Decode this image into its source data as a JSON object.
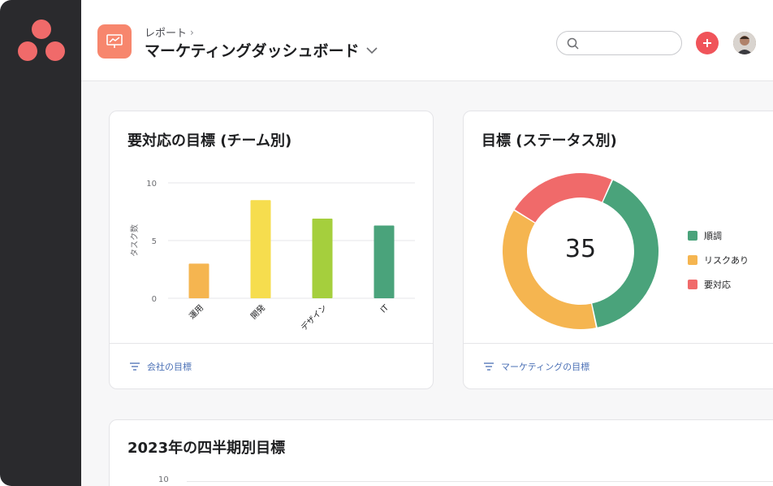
{
  "colors": {
    "sidebar": "#2a2a2d",
    "brand": "#f06a6a",
    "report_icon": "#f7866d",
    "add_button": "#f0545a"
  },
  "header": {
    "breadcrumb": "レポート",
    "breadcrumb_sep": "›",
    "title": "マーケティングダッシュボード",
    "search_placeholder": ""
  },
  "icons": {
    "logo": "asana-logo",
    "report": "presentation-chart-icon",
    "search": "search-icon",
    "add": "plus-icon",
    "dropdown": "chevron-down-icon",
    "filter": "filter-icon"
  },
  "card_team": {
    "title": "要対応の目標 (チーム別)",
    "footer": "会社の目標"
  },
  "card_status": {
    "title": "目標 (ステータス別)",
    "center_value": "35",
    "footer": "マーケティングの目標"
  },
  "card_quarter": {
    "title": "2023年の四半期別目標",
    "y_tick": "10"
  },
  "chart_data": [
    {
      "type": "bar",
      "title": "要対応の目標 (チーム別)",
      "xlabel": "",
      "ylabel": "タスク数",
      "categories": [
        "運用",
        "開発",
        "デザイン",
        "IT"
      ],
      "values": [
        3,
        8.5,
        6.9,
        6.3
      ],
      "colors": [
        "#f5b550",
        "#f6dd4e",
        "#a5cf3d",
        "#4aa37b"
      ],
      "ylim": [
        0,
        10
      ],
      "yticks": [
        0,
        5,
        10
      ],
      "grid": true
    },
    {
      "type": "pie",
      "title": "目標 (ステータス別)",
      "donut": true,
      "center_label": "35",
      "slices": [
        {
          "name": "順調",
          "value": 14,
          "color": "#4aa37b"
        },
        {
          "name": "リスクあり",
          "value": 13,
          "color": "#f5b550"
        },
        {
          "name": "要対応",
          "value": 8,
          "color": "#f06a6a"
        }
      ],
      "legend": "right"
    }
  ]
}
